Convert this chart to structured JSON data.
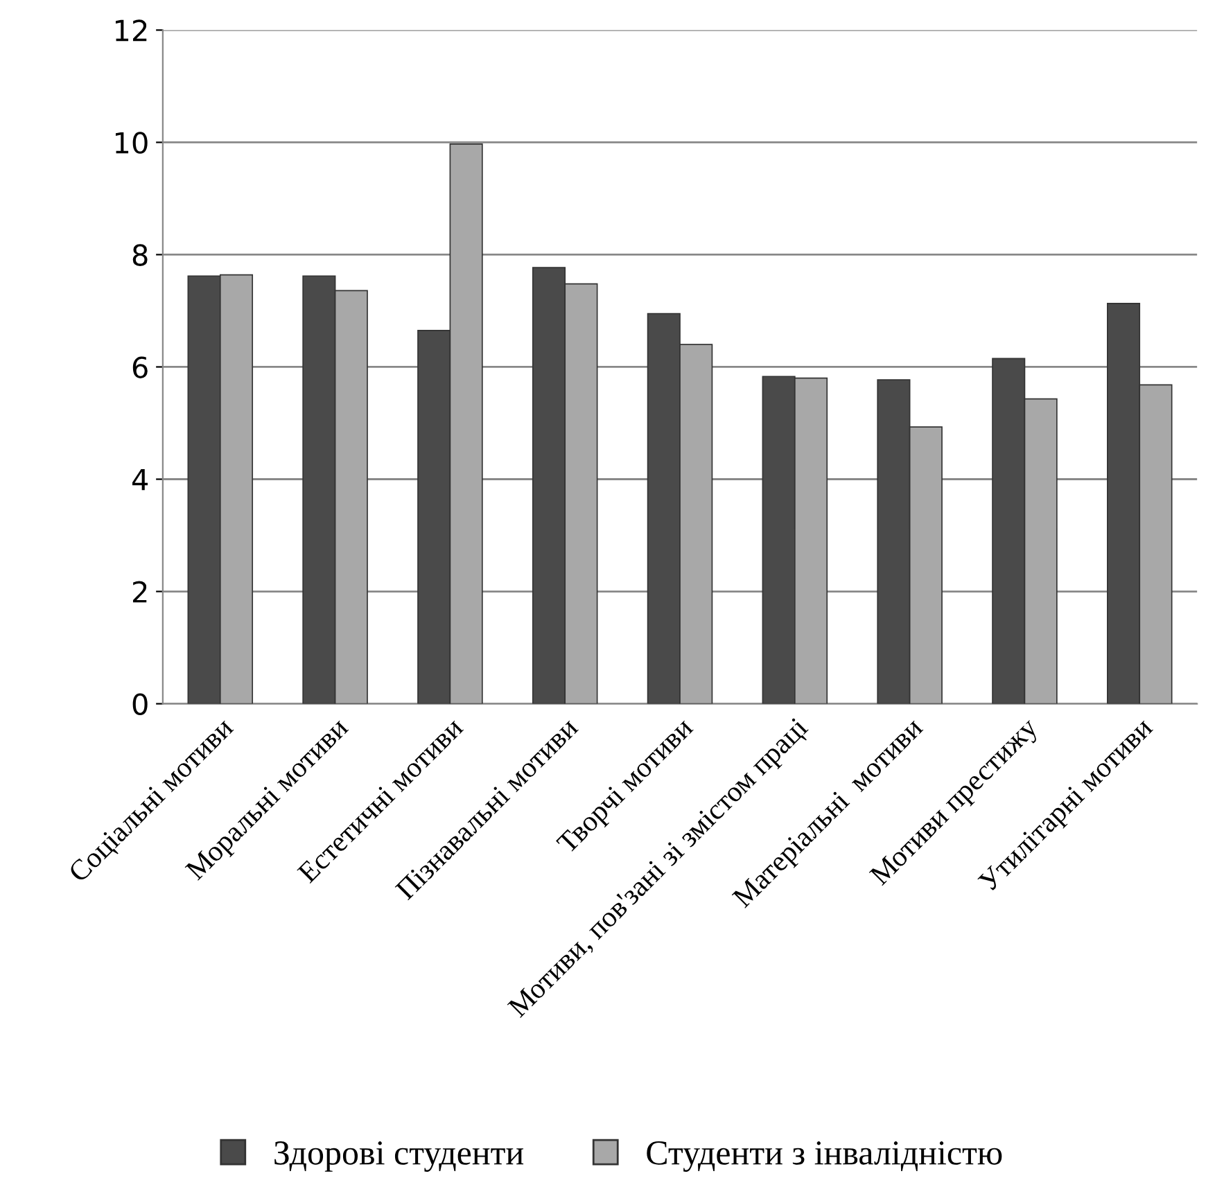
{
  "chart_data": {
    "type": "bar",
    "categories": [
      "Соціальні мотиви",
      "Моральні мотиви",
      "Естетичні мотиви",
      "Пізнавальні мотиви",
      "Творчі мотиви",
      "Мотиви, пов'зані зі змістом праці",
      "Матеріальні  мотиви",
      "Мотиви престижу",
      "Утилітарні мотиви"
    ],
    "series": [
      {
        "name": "Здорові студенти",
        "color": "#4a4a4a",
        "values": [
          7.62,
          7.62,
          6.65,
          7.77,
          6.95,
          5.83,
          5.77,
          6.15,
          7.13
        ]
      },
      {
        "name": "Студенти з інвалідністю",
        "color": "#a8a8a8",
        "values": [
          7.64,
          7.36,
          9.97,
          7.48,
          6.4,
          5.8,
          4.93,
          5.43,
          5.68
        ]
      }
    ],
    "ylim": [
      0,
      12
    ],
    "yticks": [
      0,
      2,
      4,
      6,
      8,
      10,
      12
    ],
    "grid": "y",
    "legend": "bottom"
  }
}
